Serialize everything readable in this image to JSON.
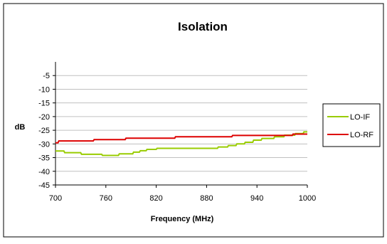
{
  "chart_data": {
    "type": "line",
    "title": "Isolation",
    "xlabel": "Frequency (MHz)",
    "ylabel": "dB",
    "xlim": [
      700,
      1000
    ],
    "ylim": [
      -45,
      0
    ],
    "x_ticks": [
      700,
      760,
      820,
      880,
      940,
      1000
    ],
    "x_tick_labels": [
      "700",
      "760",
      "820",
      "880",
      "940",
      "1000"
    ],
    "y_ticks": [
      -5,
      -10,
      -15,
      -20,
      -25,
      -30,
      -35,
      -40,
      -45
    ],
    "y_tick_labels": [
      "-5",
      "-10",
      "-15",
      "-20",
      "-25",
      "-30",
      "-35",
      "-40",
      "-45"
    ],
    "grid": true,
    "legend_position": "right",
    "series": [
      {
        "name": "LO-IF",
        "color": "#99cc00",
        "x": [
          700,
          710,
          711,
          730,
          731,
          755,
          756,
          775,
          776,
          792,
          793,
          800,
          801,
          808,
          809,
          820,
          821,
          893,
          894,
          905,
          906,
          915,
          916,
          925,
          926,
          935,
          936,
          945,
          946,
          960,
          961,
          972,
          973,
          985,
          986,
          995,
          996,
          1000
        ],
        "values": [
          -32.6,
          -32.6,
          -33.2,
          -33.2,
          -33.8,
          -33.8,
          -34.2,
          -34.2,
          -33.6,
          -33.6,
          -33.0,
          -33.0,
          -32.5,
          -32.5,
          -32.0,
          -32.0,
          -31.6,
          -31.6,
          -31.1,
          -31.1,
          -30.6,
          -30.6,
          -30.0,
          -30.0,
          -29.4,
          -29.4,
          -28.6,
          -28.6,
          -28.0,
          -28.0,
          -27.4,
          -27.4,
          -26.8,
          -26.8,
          -26.2,
          -26.2,
          -25.6,
          -25.6
        ]
      },
      {
        "name": "LO-RF",
        "color": "#dd0000",
        "x": [
          700,
          703,
          704,
          745,
          746,
          783,
          784,
          842,
          843,
          910,
          911,
          982,
          983,
          1000
        ],
        "values": [
          -29.6,
          -29.6,
          -28.9,
          -28.9,
          -28.4,
          -28.4,
          -27.9,
          -27.9,
          -27.4,
          -27.4,
          -26.9,
          -26.9,
          -26.4,
          -26.4
        ]
      }
    ]
  }
}
